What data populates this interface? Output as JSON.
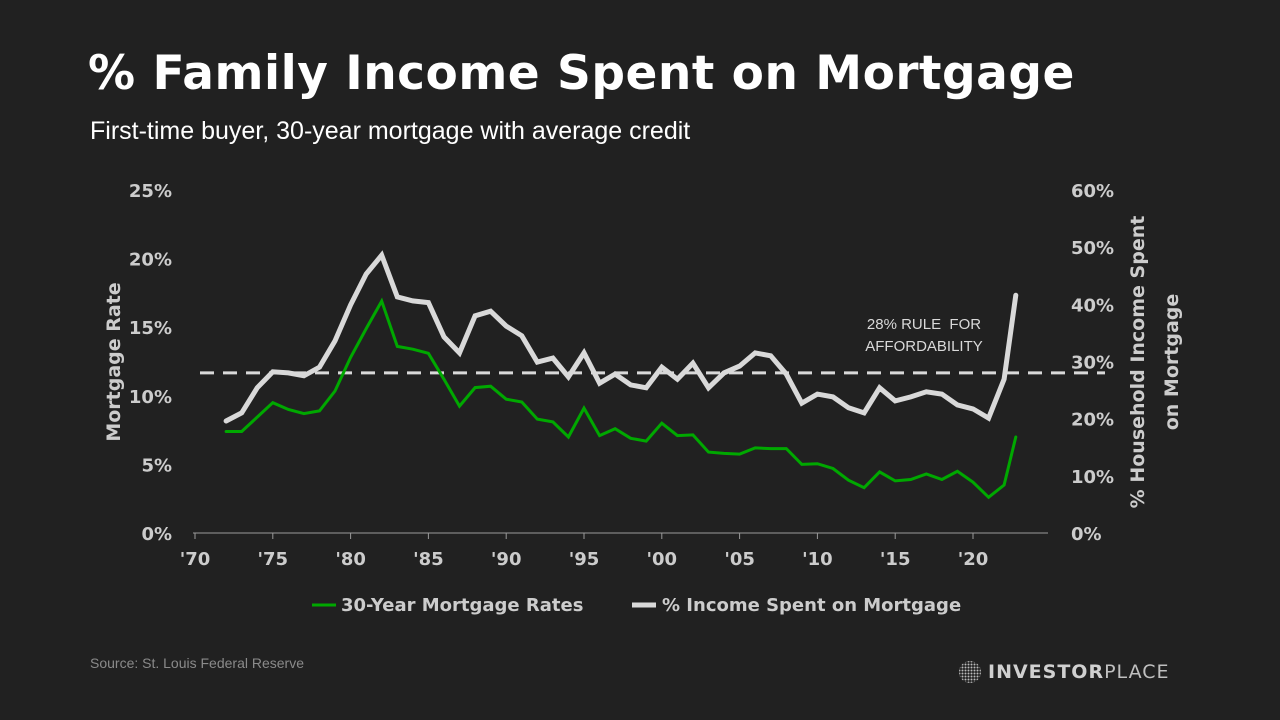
{
  "title": "% Family Income Spent on Mortgage",
  "subtitle": "First-time buyer, 30-year mortgage with average credit",
  "source": "Source: St. Louis Federal Reserve",
  "logo": {
    "bold": "INVESTOR",
    "light": "PLACE"
  },
  "colors": {
    "background": "#212121",
    "mortgage_rate": "#00a800",
    "income_share": "#d9d9d9",
    "text": "#cccccc"
  },
  "chart_data": {
    "type": "line",
    "title": "% Family Income Spent on Mortgage",
    "x_ticks": [
      1970,
      1975,
      1980,
      1985,
      1990,
      1995,
      2000,
      2005,
      2010,
      2015,
      2020
    ],
    "x_tick_labels": [
      "'70",
      "'75",
      "'80",
      "'85",
      "'90",
      "'95",
      "'00",
      "'05",
      "'10",
      "'15",
      "'20"
    ],
    "xlim": [
      1970,
      2025
    ],
    "y_left": {
      "label": "Mortgage Rate",
      "ylim": [
        0,
        25
      ],
      "ticks": [
        0,
        5,
        10,
        15,
        20,
        25
      ],
      "tick_labels": [
        "0%",
        "5%",
        "10%",
        "15%",
        "20%",
        "25%"
      ]
    },
    "y_right": {
      "label_line1": "% Household Income Spent",
      "label_line2": "on Mortgage",
      "ylim": [
        0,
        60
      ],
      "ticks": [
        0,
        10,
        20,
        30,
        40,
        50,
        60
      ],
      "tick_labels": [
        "0%",
        "10%",
        "20%",
        "30%",
        "40%",
        "50%",
        "60%"
      ]
    },
    "grid": false,
    "legend_position": "bottom",
    "series": [
      {
        "name": "30-Year Mortgage Rates",
        "axis": "left",
        "x": [
          1972,
          1973,
          1974,
          1975,
          1976,
          1977,
          1978,
          1979,
          1980,
          1981,
          1982,
          1983,
          1984,
          1985,
          1986,
          1987,
          1988,
          1989,
          1990,
          1991,
          1992,
          1993,
          1994,
          1995,
          1996,
          1997,
          1998,
          1999,
          2000,
          2001,
          2002,
          2003,
          2004,
          2005,
          2006,
          2007,
          2008,
          2009,
          2010,
          2011,
          2012,
          2013,
          2014,
          2015,
          2016,
          2017,
          2018,
          2019,
          2020,
          2021,
          2022,
          2022.75
        ],
        "values": [
          7.4,
          7.4,
          8.45,
          9.5,
          9.0,
          8.7,
          8.9,
          10.35,
          12.8,
          14.9,
          16.9,
          13.6,
          13.4,
          13.1,
          11.2,
          9.25,
          10.6,
          10.7,
          9.75,
          9.55,
          8.3,
          8.1,
          7.0,
          9.1,
          7.1,
          7.6,
          6.9,
          6.7,
          8.0,
          7.1,
          7.15,
          5.9,
          5.8,
          5.75,
          6.2,
          6.15,
          6.15,
          5.0,
          5.05,
          4.7,
          3.85,
          3.3,
          4.45,
          3.8,
          3.9,
          4.3,
          3.9,
          4.5,
          3.7,
          2.6,
          3.5,
          7.0
        ]
      },
      {
        "name": "% Income Spent on Mortgage",
        "axis": "right",
        "x": [
          1972,
          1973,
          1974,
          1975,
          1976,
          1977,
          1978,
          1979,
          1980,
          1981,
          1982,
          1983,
          1984,
          1985,
          1986,
          1987,
          1988,
          1989,
          1990,
          1991,
          1992,
          1993,
          1994,
          1995,
          1996,
          1997,
          1998,
          1999,
          2000,
          2001,
          2002,
          2003,
          2004,
          2005,
          2006,
          2007,
          2008,
          2009,
          2010,
          2011,
          2012,
          2013,
          2014,
          2015,
          2016,
          2017,
          2018,
          2019,
          2020,
          2021,
          2022,
          2022.75
        ],
        "values": [
          19.6,
          21.0,
          25.4,
          28.2,
          28.0,
          27.5,
          29.0,
          33.6,
          39.9,
          45.3,
          48.6,
          41.3,
          40.6,
          40.3,
          34.3,
          31.5,
          38.0,
          38.8,
          36.2,
          34.5,
          29.9,
          30.6,
          27.3,
          31.5,
          26.2,
          27.8,
          25.9,
          25.4,
          29.0,
          26.9,
          29.7,
          25.4,
          28.0,
          29.2,
          31.5,
          31.0,
          27.8,
          22.7,
          24.3,
          23.8,
          21.9,
          21.0,
          25.4,
          23.1,
          23.8,
          24.7,
          24.3,
          22.4,
          21.7,
          20.1,
          26.9,
          41.6
        ]
      }
    ],
    "reference_line": {
      "axis": "right",
      "value": 28,
      "style": "dashed",
      "annotation_line1": "28% RULE  FOR",
      "annotation_line2": "AFFORDABILITY"
    }
  }
}
